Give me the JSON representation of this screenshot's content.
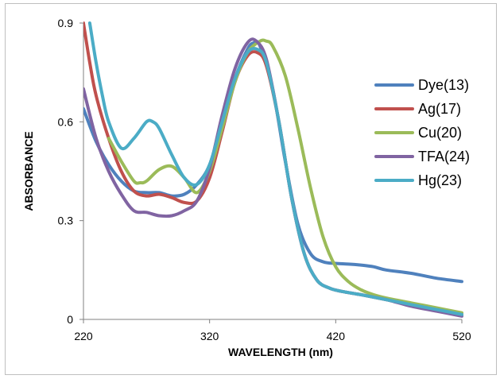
{
  "chart_data": {
    "type": "line",
    "xlabel": "WAVELENGTH (nm)",
    "ylabel": "ABSORBANCE",
    "xlim": [
      220,
      520
    ],
    "ylim": [
      0,
      0.9
    ],
    "x_ticks": [
      "220",
      "320",
      "420",
      "520"
    ],
    "y_ticks": [
      "0",
      "0.3",
      "0.6",
      "0.9"
    ],
    "legend_position": "right",
    "grid": false,
    "series": [
      {
        "name": "Dye(13)",
        "color": "#4F81BD",
        "x": [
          220,
          230,
          240,
          250,
          260,
          270,
          280,
          290,
          300,
          310,
          320,
          330,
          340,
          350,
          355,
          360,
          370,
          380,
          390,
          400,
          410,
          420,
          430,
          440,
          450,
          460,
          480,
          500,
          520
        ],
        "y": [
          0.64,
          0.54,
          0.47,
          0.42,
          0.39,
          0.385,
          0.385,
          0.375,
          0.38,
          0.41,
          0.47,
          0.6,
          0.73,
          0.82,
          0.84,
          0.83,
          0.7,
          0.48,
          0.29,
          0.2,
          0.175,
          0.17,
          0.168,
          0.165,
          0.16,
          0.15,
          0.14,
          0.125,
          0.115
        ]
      },
      {
        "name": "Ag(17)",
        "color": "#C0504D",
        "x": [
          220,
          225,
          230,
          240,
          250,
          260,
          270,
          280,
          290,
          300,
          310,
          320,
          330,
          340,
          350,
          358,
          365,
          375,
          385,
          395,
          405,
          415,
          425,
          440,
          460,
          480,
          500,
          520
        ],
        "y": [
          0.9,
          0.78,
          0.68,
          0.55,
          0.45,
          0.39,
          0.375,
          0.38,
          0.37,
          0.355,
          0.36,
          0.43,
          0.57,
          0.72,
          0.8,
          0.81,
          0.77,
          0.6,
          0.37,
          0.2,
          0.12,
          0.095,
          0.085,
          0.075,
          0.06,
          0.045,
          0.03,
          0.015
        ]
      },
      {
        "name": "Cu(20)",
        "color": "#9BBB59",
        "x": [
          240,
          250,
          260,
          265,
          270,
          280,
          290,
          300,
          310,
          320,
          330,
          340,
          350,
          360,
          365,
          370,
          380,
          390,
          400,
          410,
          420,
          430,
          440,
          450,
          460,
          480,
          500,
          520
        ],
        "y": [
          0.55,
          0.48,
          0.42,
          0.415,
          0.42,
          0.455,
          0.465,
          0.43,
          0.385,
          0.45,
          0.58,
          0.72,
          0.81,
          0.845,
          0.845,
          0.83,
          0.74,
          0.58,
          0.4,
          0.25,
          0.16,
          0.115,
          0.09,
          0.075,
          0.065,
          0.05,
          0.035,
          0.02
        ]
      },
      {
        "name": "TFA(24)",
        "color": "#8064A2",
        "x": [
          220,
          230,
          240,
          250,
          260,
          270,
          280,
          290,
          300,
          310,
          320,
          330,
          340,
          350,
          357,
          365,
          375,
          385,
          395,
          405,
          415,
          425,
          440,
          460,
          480,
          500,
          520
        ],
        "y": [
          0.7,
          0.55,
          0.45,
          0.38,
          0.33,
          0.325,
          0.315,
          0.315,
          0.33,
          0.36,
          0.46,
          0.62,
          0.76,
          0.84,
          0.845,
          0.79,
          0.6,
          0.37,
          0.2,
          0.12,
          0.095,
          0.085,
          0.075,
          0.06,
          0.04,
          0.025,
          0.01
        ]
      },
      {
        "name": "Hg(23)",
        "color": "#4BACC6",
        "x": [
          225,
          230,
          235,
          240,
          250,
          260,
          270,
          275,
          280,
          290,
          300,
          310,
          320,
          330,
          340,
          350,
          358,
          365,
          375,
          385,
          395,
          405,
          415,
          425,
          440,
          460,
          480,
          500,
          520
        ],
        "y": [
          0.9,
          0.78,
          0.68,
          0.6,
          0.52,
          0.55,
          0.6,
          0.6,
          0.58,
          0.5,
          0.43,
          0.41,
          0.47,
          0.6,
          0.73,
          0.81,
          0.82,
          0.78,
          0.6,
          0.37,
          0.2,
          0.12,
          0.095,
          0.085,
          0.075,
          0.06,
          0.045,
          0.03,
          0.015
        ]
      }
    ]
  }
}
